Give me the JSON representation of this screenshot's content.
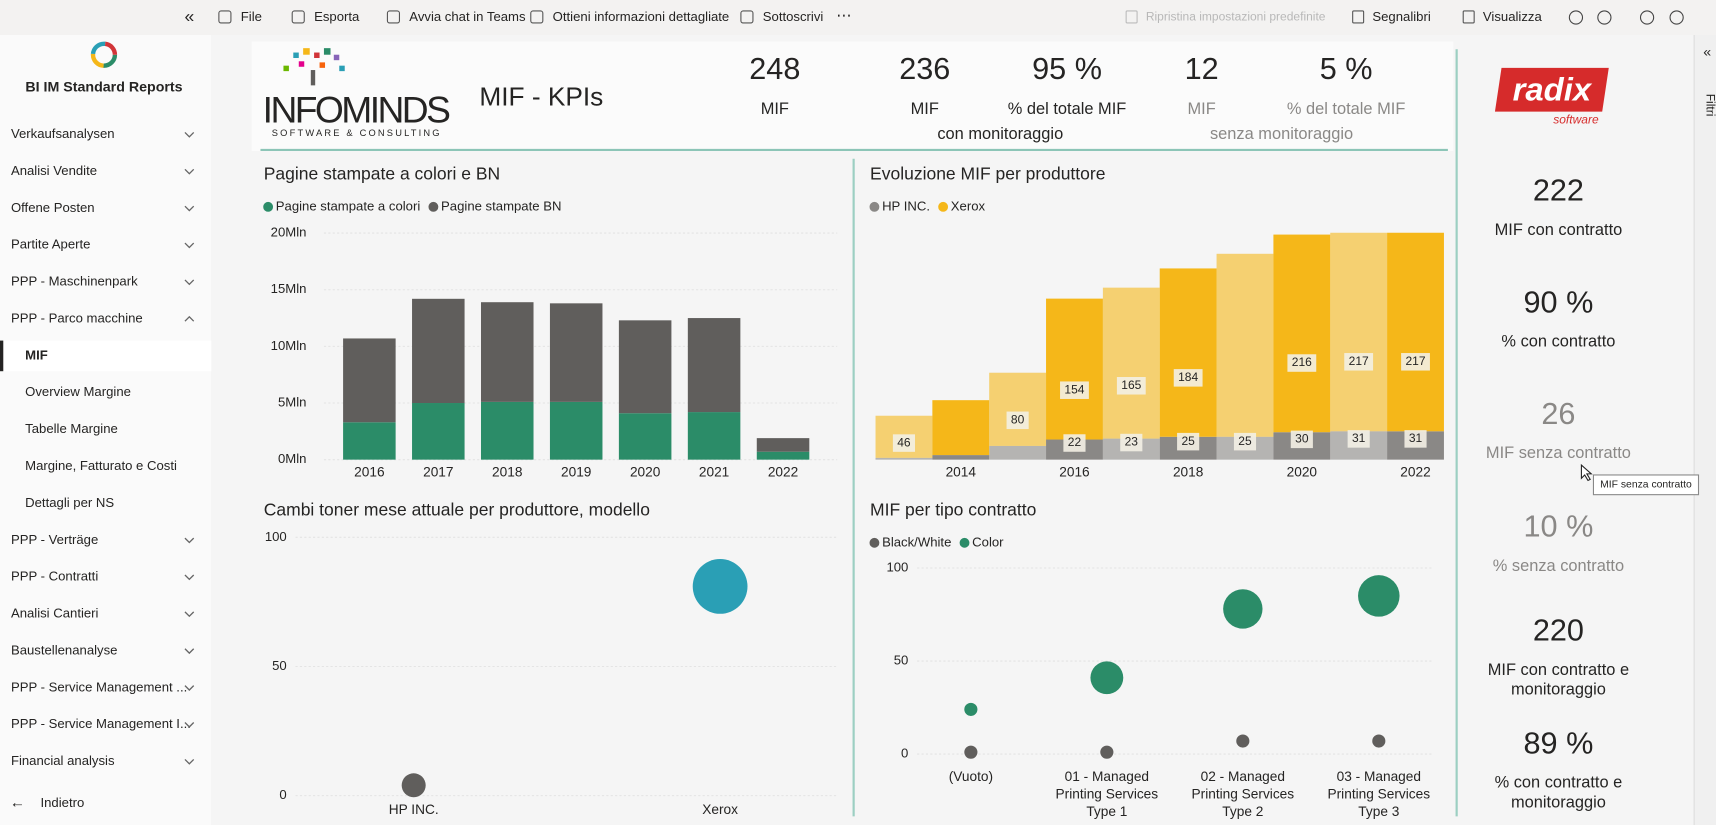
{
  "toolbar": {
    "left": [
      "File",
      "Esporta",
      "Avvia chat in Teams",
      "Ottieni informazioni dettagliate",
      "Sottoscrivi"
    ],
    "right": [
      "Ripristina impostazioni predefinite",
      "Segnalibri",
      "Visualizza"
    ]
  },
  "sidebar": {
    "title": "BI IM Standard Reports",
    "items": [
      {
        "label": "Verkaufsanalysen"
      },
      {
        "label": "Analisi Vendite"
      },
      {
        "label": "Offene Posten"
      },
      {
        "label": "Partite Aperte"
      },
      {
        "label": "PPP - Maschinenpark"
      },
      {
        "label": "PPP - Parco macchine",
        "expanded": true,
        "children": [
          {
            "label": "MIF",
            "active": true
          },
          {
            "label": "Overview Margine"
          },
          {
            "label": "Tabelle Margine"
          },
          {
            "label": "Margine, Fatturato e Costi"
          },
          {
            "label": "Dettagli per NS"
          }
        ]
      },
      {
        "label": "PPP - Verträge"
      },
      {
        "label": "PPP - Contratti"
      },
      {
        "label": "Analisi Cantieri"
      },
      {
        "label": "Baustellenanalyse"
      },
      {
        "label": "PPP - Service Management ..."
      },
      {
        "label": "PPP - Service Management I..."
      },
      {
        "label": "Financial analysis"
      }
    ],
    "back": "Indietro"
  },
  "header": {
    "logo": "INFOMINDS",
    "logo_tagline": "SOFTWARE & CONSULTING",
    "title": "MIF - KPIs",
    "kpis": [
      {
        "value": "248",
        "label": "MIF"
      },
      {
        "value": "236",
        "label": "MIF"
      },
      {
        "value": "95 %",
        "label": "% del totale MIF"
      },
      {
        "value": "12",
        "label": "MIF",
        "muted": true
      },
      {
        "value": "5 %",
        "label": "% del totale MIF",
        "muted": true
      }
    ],
    "groups": [
      {
        "label": "con monitoraggio"
      },
      {
        "label": "senza monitoraggio",
        "muted": true
      }
    ]
  },
  "side_panel": {
    "logo": "radix",
    "logo_tagline": "software",
    "kpis": [
      {
        "value": "222",
        "label": "MIF con contratto"
      },
      {
        "value": "90 %",
        "label": "% con contratto"
      },
      {
        "value": "26",
        "label": "MIF senza contratto",
        "muted": true
      },
      {
        "value": "10 %",
        "label": "% senza contratto",
        "muted": true
      },
      {
        "value": "220",
        "label": "MIF con contratto e monitoraggio"
      },
      {
        "value": "89 %",
        "label": "% con contratto e monitoraggio"
      }
    ],
    "tooltip": "MIF senza contratto"
  },
  "filter_pane": "Filtri",
  "chart_data": [
    {
      "type": "bar",
      "title": "Pagine stampate a colori e BN",
      "categories": [
        "2016",
        "2017",
        "2018",
        "2019",
        "2020",
        "2021",
        "2022"
      ],
      "series": [
        {
          "name": "Pagine stampate a colori",
          "color": "#2b8c68",
          "values": [
            3300000,
            5000000,
            5100000,
            5100000,
            4100000,
            4200000,
            700000
          ]
        },
        {
          "name": "Pagine stampate BN",
          "color": "#605e5c",
          "values": [
            7400000,
            9200000,
            8800000,
            8700000,
            8200000,
            8300000,
            1200000
          ]
        }
      ],
      "ylim": [
        0,
        20000000
      ],
      "yticks": [
        {
          "value": 0,
          "label": "0Mln"
        },
        {
          "value": 5000000,
          "label": "5Mln"
        },
        {
          "value": 10000000,
          "label": "10Mln"
        },
        {
          "value": 15000000,
          "label": "15Mln"
        },
        {
          "value": 20000000,
          "label": "20Mln"
        }
      ],
      "grid": true
    },
    {
      "type": "area",
      "title": "Evoluzione MIF per produttore",
      "x": [
        2013,
        2014,
        2015,
        2016,
        2017,
        2018,
        2019,
        2020,
        2021,
        2022
      ],
      "series": [
        {
          "name": "HP INC.",
          "color": "#8a8886",
          "values": [
            2,
            5,
            15,
            22,
            23,
            25,
            25,
            30,
            31,
            31
          ],
          "value_labels": [
            null,
            null,
            null,
            "22",
            "23",
            "25",
            "25",
            "30",
            "31",
            "31"
          ]
        },
        {
          "name": "Xerox",
          "color": "#f5b719",
          "values": [
            46,
            60,
            80,
            154,
            165,
            184,
            200,
            216,
            217,
            217
          ],
          "value_labels": [
            "46",
            null,
            "80",
            "154",
            "165",
            "184",
            null,
            "216",
            "217",
            "217"
          ]
        }
      ],
      "xlim": [
        2012.5,
        2022.3
      ],
      "xticks": [
        2014,
        2016,
        2018,
        2020,
        2022
      ],
      "ylim": [
        0,
        250
      ]
    },
    {
      "type": "bubble",
      "title": "Cambi toner mese attuale per produttore, modello",
      "categories": [
        "HP INC.",
        "Xerox"
      ],
      "values": [
        4,
        81
      ],
      "sizes": [
        10,
        52
      ],
      "colors": [
        "#605e5c",
        "#2a9fb5"
      ],
      "ylim": [
        0,
        100
      ],
      "yticks": [
        0,
        50,
        100
      ],
      "grid": true
    },
    {
      "type": "bubble",
      "title": "MIF per tipo contratto",
      "categories": [
        "(Vuoto)",
        "01 - Managed Printing Services Type 1",
        "02 - Managed Printing Services Type 2",
        "03 - Managed Printing Services Type 3"
      ],
      "series": [
        {
          "name": "Black/White",
          "color": "#605e5c",
          "values": [
            1,
            1,
            7,
            7
          ],
          "sizes": [
            4,
            4,
            4,
            4
          ]
        },
        {
          "name": "Color",
          "color": "#2b8c68",
          "values": [
            24,
            41,
            78,
            85
          ],
          "sizes": [
            4,
            25,
            36,
            40
          ]
        }
      ],
      "ylim": [
        0,
        100
      ],
      "yticks": [
        0,
        50,
        100
      ],
      "grid": true
    }
  ]
}
